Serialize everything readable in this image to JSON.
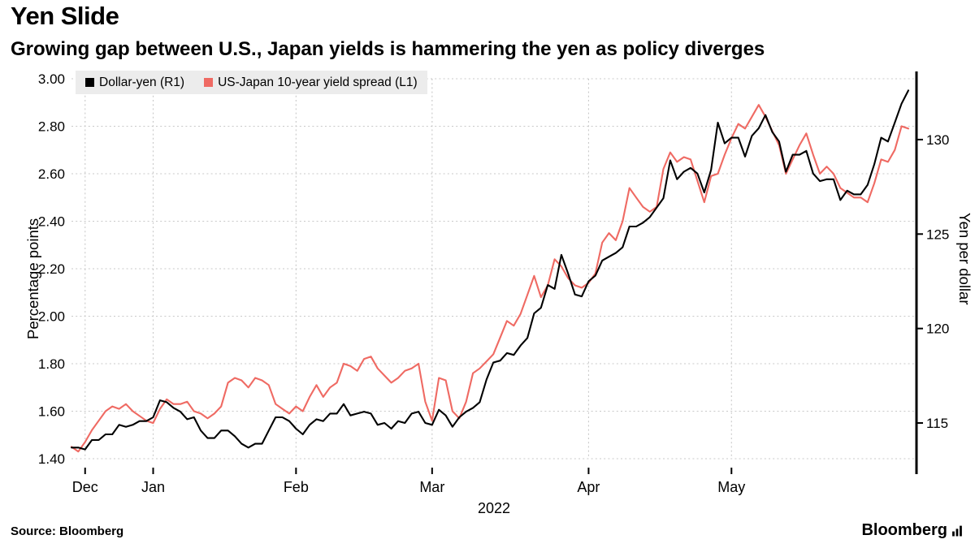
{
  "title": "Yen Slide",
  "subtitle": "Growing gap between U.S., Japan yields is hammering the yen as policy diverges",
  "source": "Source: Bloomberg",
  "brand": {
    "name": "Bloomberg",
    "icon": "bar-chart-icon"
  },
  "colors": {
    "dollar_yen": "#000000",
    "spread": "#ef6a63",
    "legend_bg": "#ececec",
    "grid": "#c9c9c9"
  },
  "chart_data": {
    "type": "line",
    "title": "Yen Slide",
    "subtitle": "Growing gap between U.S., Japan yields is hammering the yen as policy diverges",
    "legend_position": "top-left",
    "grid": true,
    "x_axis": {
      "year_label": "2022",
      "ticks": [
        {
          "label": "Dec",
          "index": 2
        },
        {
          "label": "Jan",
          "index": 12
        },
        {
          "label": "Feb",
          "index": 33
        },
        {
          "label": "Mar",
          "index": 53
        },
        {
          "label": "Apr",
          "index": 76
        },
        {
          "label": "May",
          "index": 97
        }
      ]
    },
    "left_axis": {
      "title": "Percentage points",
      "range": [
        1.4,
        3.0
      ],
      "tick_labels": [
        "3.00",
        "2.80",
        "2.60",
        "2.40",
        "2.20",
        "2.00",
        "1.80",
        "1.60",
        "1.40"
      ]
    },
    "right_axis": {
      "title": "Yen per dollar",
      "range": [
        113.11,
        133.22
      ],
      "tick_labels": [
        "130",
        "125",
        "120",
        "115"
      ]
    },
    "series": [
      {
        "name": "Dollar-yen (R1)",
        "axis": "right",
        "color": "#000000",
        "values": [
          113.7,
          113.7,
          113.6,
          114.1,
          114.1,
          114.4,
          114.4,
          114.9,
          114.8,
          114.9,
          115.1,
          115.1,
          115.3,
          116.2,
          116.1,
          115.8,
          115.6,
          115.2,
          115.3,
          114.6,
          114.2,
          114.2,
          114.6,
          114.6,
          114.3,
          113.9,
          113.7,
          113.9,
          113.9,
          114.6,
          115.3,
          115.3,
          115.1,
          114.7,
          114.4,
          114.9,
          115.2,
          115.1,
          115.5,
          115.5,
          116.0,
          115.4,
          115.5,
          115.6,
          115.5,
          114.9,
          115.0,
          114.7,
          115.1,
          115.0,
          115.5,
          115.6,
          115.0,
          114.9,
          115.7,
          115.4,
          114.8,
          115.3,
          115.6,
          115.8,
          116.1,
          117.3,
          118.2,
          118.3,
          118.7,
          118.6,
          119.1,
          119.5,
          120.8,
          121.1,
          122.3,
          122.1,
          123.9,
          122.9,
          121.8,
          121.7,
          122.5,
          122.8,
          123.6,
          123.8,
          124.0,
          124.3,
          125.4,
          125.4,
          125.6,
          125.9,
          126.4,
          126.9,
          128.9,
          127.9,
          128.3,
          128.5,
          128.2,
          127.2,
          128.4,
          130.9,
          129.8,
          130.1,
          130.1,
          129.1,
          130.2,
          130.6,
          131.3,
          130.4,
          129.9,
          128.3,
          129.2,
          129.2,
          129.4,
          128.2,
          127.8,
          127.9,
          127.9,
          126.8,
          127.3,
          127.1,
          127.1,
          127.6,
          128.7,
          130.1,
          129.9,
          130.9,
          131.9,
          132.6
        ]
      },
      {
        "name": "US-Japan 10-year yield spread (L1)",
        "axis": "left",
        "color": "#ef6a63",
        "values": [
          1.45,
          1.43,
          1.47,
          1.52,
          1.56,
          1.6,
          1.62,
          1.61,
          1.63,
          1.6,
          1.58,
          1.56,
          1.55,
          1.61,
          1.65,
          1.63,
          1.63,
          1.64,
          1.6,
          1.59,
          1.57,
          1.59,
          1.62,
          1.72,
          1.74,
          1.73,
          1.7,
          1.74,
          1.73,
          1.71,
          1.63,
          1.61,
          1.59,
          1.62,
          1.6,
          1.66,
          1.71,
          1.66,
          1.7,
          1.72,
          1.8,
          1.79,
          1.77,
          1.82,
          1.83,
          1.78,
          1.75,
          1.72,
          1.74,
          1.77,
          1.78,
          1.8,
          1.64,
          1.56,
          1.74,
          1.73,
          1.6,
          1.57,
          1.64,
          1.76,
          1.78,
          1.81,
          1.84,
          1.91,
          1.98,
          1.96,
          2.01,
          2.09,
          2.17,
          2.08,
          2.13,
          2.24,
          2.21,
          2.16,
          2.13,
          2.12,
          2.14,
          2.18,
          2.31,
          2.35,
          2.32,
          2.4,
          2.54,
          2.5,
          2.46,
          2.44,
          2.46,
          2.62,
          2.69,
          2.65,
          2.67,
          2.66,
          2.57,
          2.48,
          2.59,
          2.6,
          2.68,
          2.75,
          2.81,
          2.79,
          2.84,
          2.89,
          2.84,
          2.78,
          2.72,
          2.6,
          2.66,
          2.72,
          2.77,
          2.68,
          2.6,
          2.63,
          2.6,
          2.54,
          2.52,
          2.5,
          2.5,
          2.48,
          2.56,
          2.66,
          2.65,
          2.7,
          2.8,
          2.79
        ]
      }
    ]
  }
}
